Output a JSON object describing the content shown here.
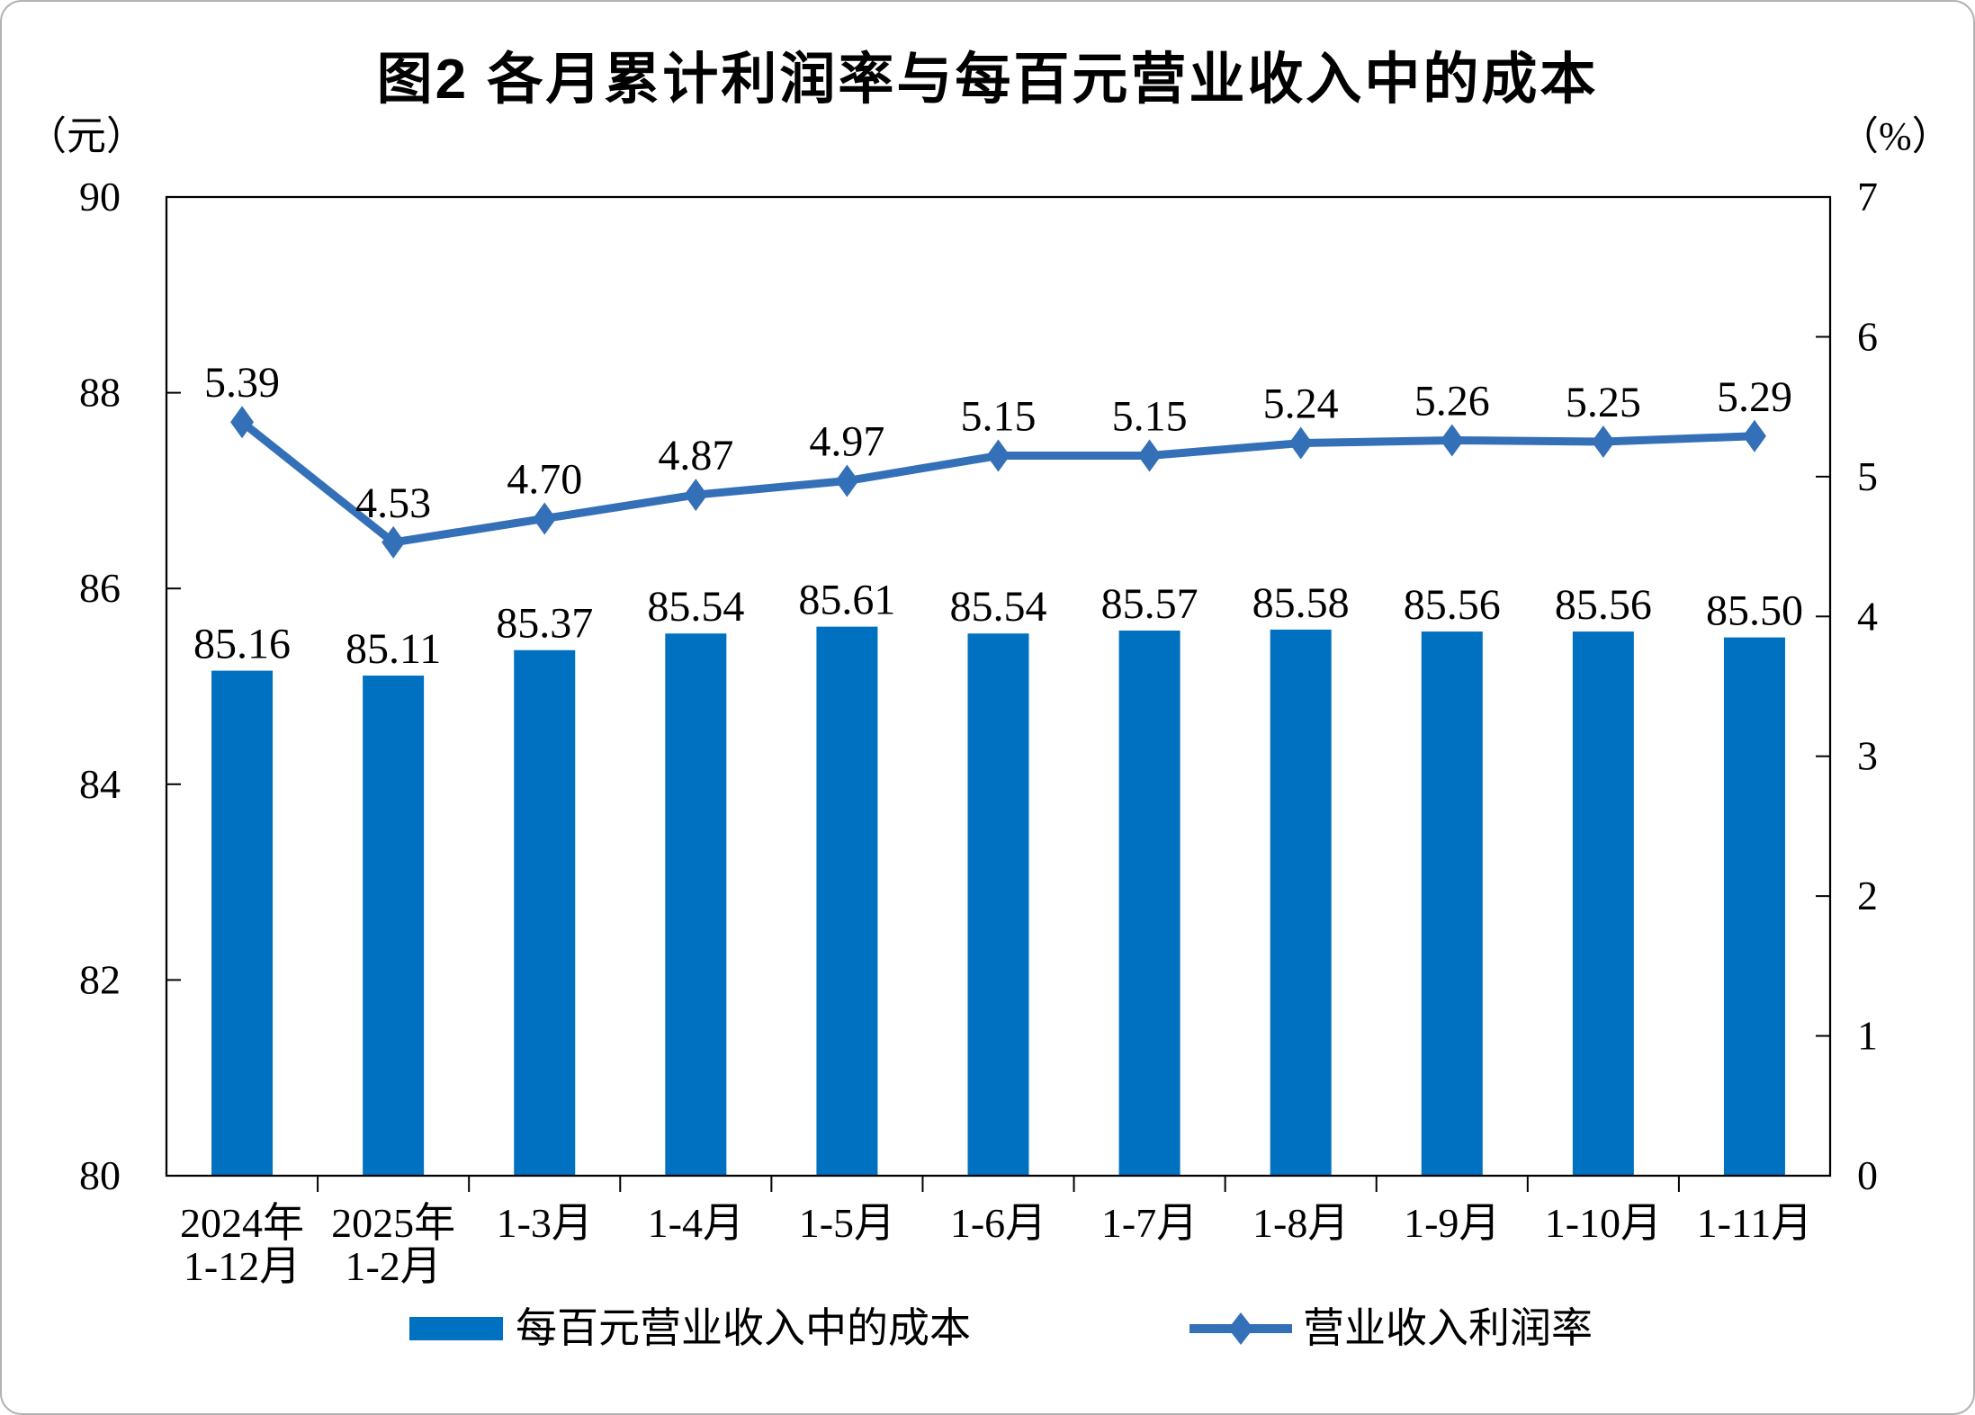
{
  "chart_data": {
    "type": "combo",
    "title": "图2 各月累计利润率与每百元营业收入中的成本",
    "categories": [
      "2024年\n1-12月",
      "2025年\n1-2月",
      "1-3月",
      "1-4月",
      "1-5月",
      "1-6月",
      "1-7月",
      "1-8月",
      "1-9月",
      "1-10月",
      "1-11月"
    ],
    "series": [
      {
        "name": "每百元营业收入中的成本",
        "type": "bar",
        "axis": "left",
        "values": [
          85.16,
          85.11,
          85.37,
          85.54,
          85.61,
          85.54,
          85.57,
          85.58,
          85.56,
          85.56,
          85.5
        ],
        "labels": [
          "85.16",
          "85.11",
          "85.37",
          "85.54",
          "85.61",
          "85.54",
          "85.57",
          "85.58",
          "85.56",
          "85.56",
          "85.50"
        ]
      },
      {
        "name": "营业收入利润率",
        "type": "line",
        "axis": "right",
        "marker": "diamond",
        "values": [
          5.39,
          4.53,
          4.7,
          4.87,
          4.97,
          5.15,
          5.15,
          5.24,
          5.26,
          5.25,
          5.29
        ],
        "labels": [
          "5.39",
          "4.53",
          "4.70",
          "4.87",
          "4.97",
          "5.15",
          "5.15",
          "5.24",
          "5.26",
          "5.25",
          "5.29"
        ]
      }
    ],
    "left_axis": {
      "unit": "（元）",
      "min": 80,
      "max": 90,
      "tick_values": [
        90,
        88,
        86,
        84,
        82,
        80
      ],
      "tick_labels": [
        "90",
        "88",
        "86",
        "84",
        "82",
        "80"
      ]
    },
    "right_axis": {
      "unit": "（%）",
      "min": 0,
      "max": 7,
      "tick_values": [
        7,
        6,
        5,
        4,
        3,
        2,
        1,
        0
      ],
      "tick_labels": [
        "7",
        "6",
        "5",
        "4",
        "3",
        "2",
        "1",
        "0"
      ]
    },
    "legend_position": "bottom",
    "grid": false
  },
  "colors": {
    "bar": "#0070C0",
    "line": "#3470B7",
    "axis": "#000000",
    "text": "#000000",
    "background": "#FFFFFF"
  }
}
